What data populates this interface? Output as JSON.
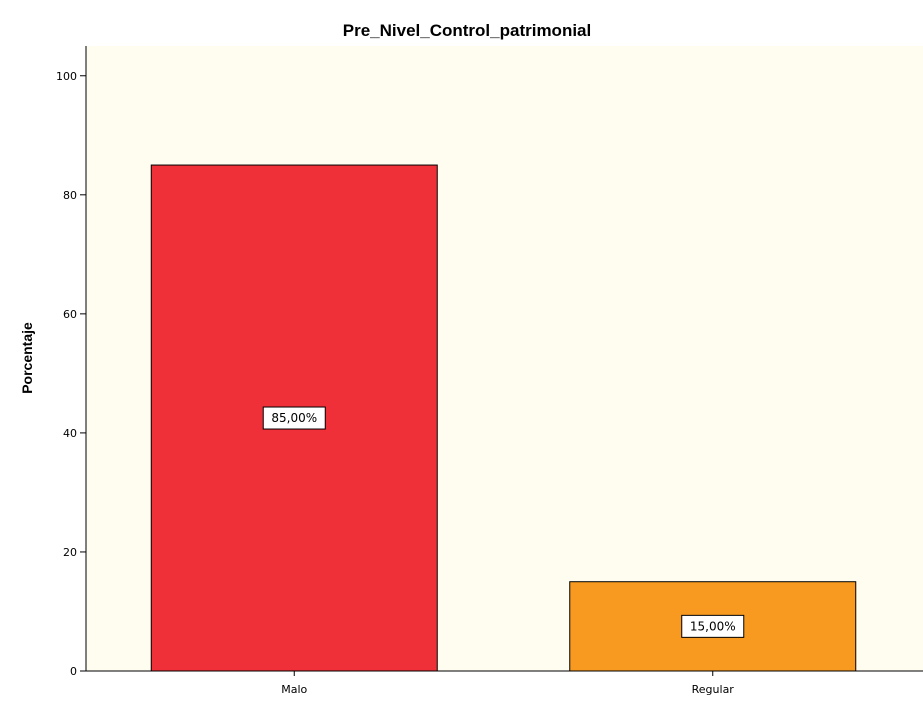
{
  "chart_data": {
    "type": "bar",
    "title": "Pre_Nivel_Control_patrimonial",
    "xlabel": "",
    "ylabel": "Porcentaje",
    "categories": [
      "Malo",
      "Regular"
    ],
    "values": [
      85,
      15
    ],
    "data_labels": [
      "85,00%",
      "15,00%"
    ],
    "bar_colors": [
      "#ef3039",
      "#f89a1f"
    ],
    "ylim": [
      0,
      105
    ],
    "yticks": [
      0,
      20,
      40,
      60,
      80,
      100
    ],
    "grid": false,
    "legend": "none",
    "background": "#fffdf0"
  }
}
